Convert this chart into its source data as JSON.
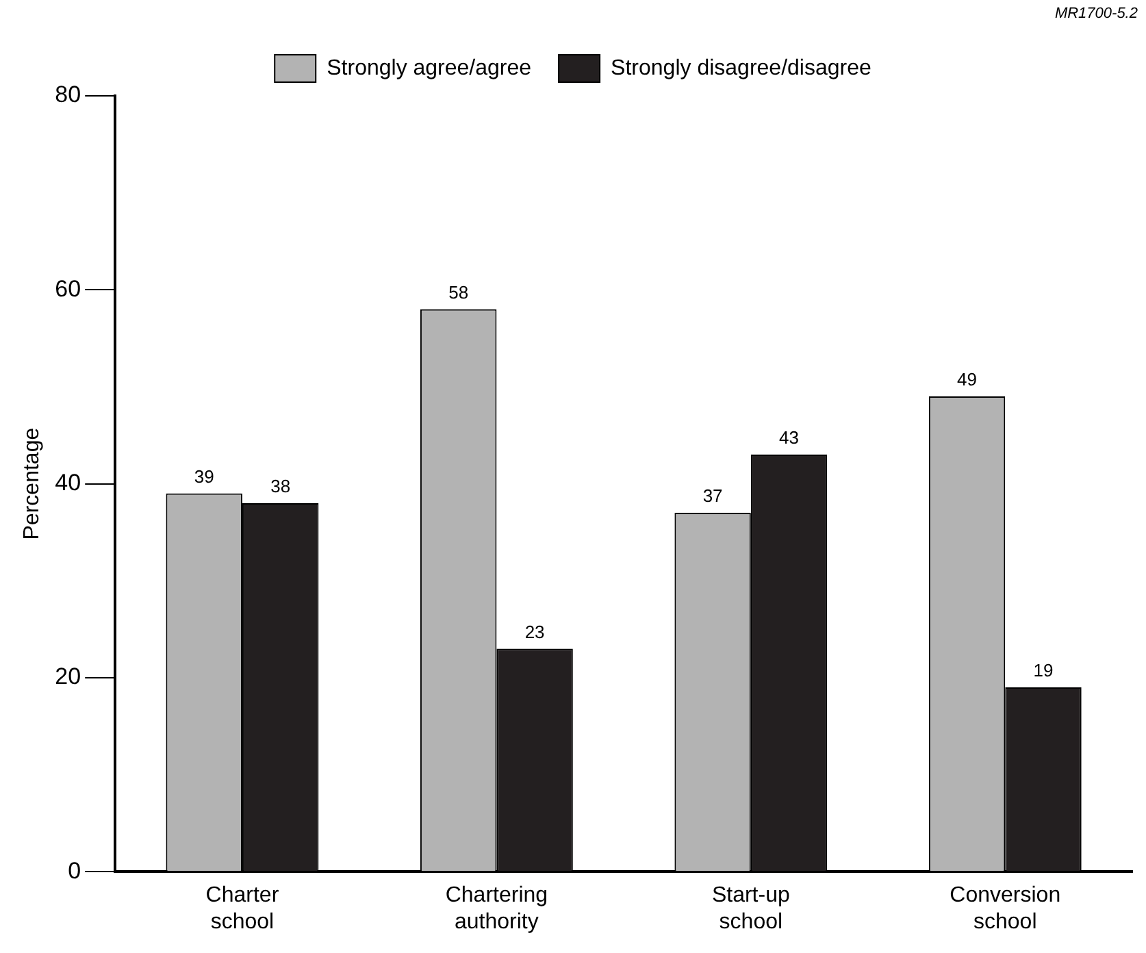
{
  "chart_data": {
    "type": "bar",
    "ylabel": "Percentage",
    "categories": [
      "Charter school",
      "Chartering authority",
      "Start-up school",
      "Conversion school"
    ],
    "series": [
      {
        "name": "Strongly agree/agree",
        "color": "#b3b3b3",
        "values": [
          39,
          58,
          37,
          49
        ]
      },
      {
        "name": "Strongly disagree/disagree",
        "color": "#231f20",
        "values": [
          38,
          23,
          43,
          19
        ]
      }
    ],
    "ylim": [
      0,
      80
    ],
    "yticks": [
      0,
      20,
      40,
      60,
      80
    ],
    "grid": false,
    "legend": "top",
    "data_labels": true,
    "annotations": [
      "MR1700-5.2"
    ]
  }
}
